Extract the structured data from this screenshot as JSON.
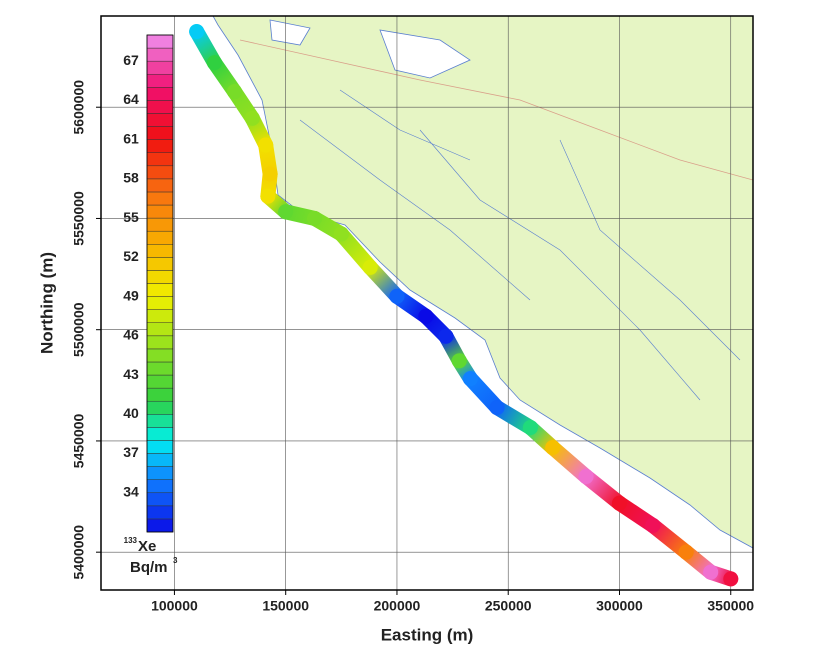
{
  "chart_data": {
    "type": "track-map",
    "x_label": "Easting (m)",
    "y_label": "Northing (m)",
    "xlim": [
      67000,
      360000
    ],
    "ylim": [
      5383000,
      5641000
    ],
    "xticks": [
      100000,
      150000,
      200000,
      250000,
      300000,
      350000
    ],
    "yticks": [
      5400000,
      5450000,
      5500000,
      5550000,
      5600000
    ],
    "grid": true,
    "track": {
      "x": [
        110000,
        118000,
        127000,
        135000,
        141000,
        143000,
        142000,
        150000,
        163000,
        175000,
        188000,
        200000,
        213000,
        222000,
        228000,
        233000,
        245000,
        260000,
        270000,
        285000,
        300000,
        315000,
        330000,
        341000,
        350000
      ],
      "y": [
        5634000,
        5620000,
        5607000,
        5595000,
        5583000,
        5570000,
        5560000,
        5553000,
        5550000,
        5543000,
        5528000,
        5515000,
        5506000,
        5497000,
        5486000,
        5478000,
        5465000,
        5456000,
        5447000,
        5434000,
        5422000,
        5412000,
        5400000,
        5391000,
        5388000
      ],
      "values": [
        37,
        41,
        44,
        45,
        50,
        51,
        50,
        43,
        44,
        45,
        48,
        34,
        31,
        32,
        43,
        35,
        34,
        40,
        52,
        68,
        62,
        64,
        56,
        68,
        63
      ]
    },
    "colorbar": {
      "clim": [
        31,
        69
      ],
      "cticks": [
        34,
        37,
        40,
        43,
        46,
        49,
        52,
        55,
        58,
        61,
        64,
        67
      ],
      "isotope_mass": "133",
      "element": "Xe",
      "unit": "Bq/m",
      "unit_power": "3",
      "colormap": [
        [
          31,
          "#0a0ae6"
        ],
        [
          35,
          "#1080ff"
        ],
        [
          38,
          "#00f0f0"
        ],
        [
          41,
          "#30d040"
        ],
        [
          45,
          "#90e020"
        ],
        [
          49,
          "#f0f000"
        ],
        [
          53,
          "#f8b000"
        ],
        [
          57,
          "#f87010"
        ],
        [
          61,
          "#f01010"
        ],
        [
          65,
          "#f01070"
        ],
        [
          69,
          "#f090f0"
        ]
      ]
    }
  }
}
